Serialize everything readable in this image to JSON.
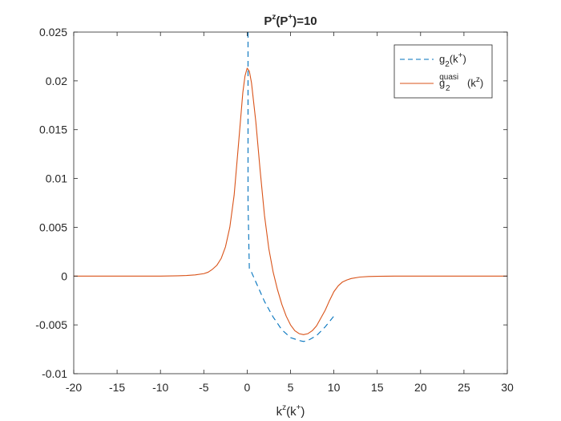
{
  "chart_data": {
    "type": "line",
    "title": {
      "base": "P",
      "base_sup": "z",
      "paren_base": "P",
      "paren_sup": "+",
      "rest": "=10"
    },
    "xlabel": {
      "base": "k",
      "base_sup": "z",
      "paren_base": "k",
      "paren_sup": "+"
    },
    "ylabel": "",
    "xlim": [
      -20,
      30
    ],
    "ylim": [
      -0.01,
      0.025
    ],
    "x_ticks": [
      -20,
      -15,
      -10,
      -5,
      0,
      5,
      10,
      15,
      20,
      25,
      30
    ],
    "x_tick_labels": [
      "-20",
      "-15",
      "-10",
      "-5",
      "0",
      "5",
      "10",
      "15",
      "20",
      "25",
      "30"
    ],
    "y_ticks": [
      -0.01,
      -0.005,
      0,
      0.005,
      0.01,
      0.015,
      0.02,
      0.025
    ],
    "y_tick_labels": [
      "-0.01",
      "-0.005",
      "0",
      "0.005",
      "0.01",
      "0.015",
      "0.02",
      "0.025"
    ],
    "grid": false,
    "legend_position": "top-right",
    "series": [
      {
        "name": "g2(k+)",
        "legend": {
          "base": "g",
          "sub": "2",
          "sup": "",
          "paren_base": "k",
          "paren_sup": "+"
        },
        "color": "#0072BD",
        "style": "dashed",
        "x": [
          0.1,
          0.1,
          0.25,
          0.5,
          1,
          2,
          3,
          4,
          5,
          6,
          6.5,
          7,
          8,
          9,
          10
        ],
        "y": [
          0.025,
          0.0075,
          0.0008,
          0.0004,
          -0.0006,
          -0.0026,
          -0.0042,
          -0.0055,
          -0.0063,
          -0.0066,
          -0.0067,
          -0.0066,
          -0.0061,
          -0.0052,
          -0.0041
        ]
      },
      {
        "name": "g2quasi(kz)",
        "legend": {
          "base": "g",
          "sub": "2",
          "sup": "quasi",
          "paren_base": "k",
          "paren_sup": "z"
        },
        "color": "#D95319",
        "style": "solid",
        "x": [
          -20,
          -15,
          -10,
          -8,
          -7,
          -6,
          -5,
          -4.5,
          -4,
          -3.5,
          -3,
          -2.5,
          -2,
          -1.5,
          -1,
          -0.5,
          -0.25,
          0,
          0.25,
          0.5,
          1,
          1.5,
          2,
          2.5,
          3,
          3.5,
          4,
          4.5,
          5,
          5.5,
          6,
          6.5,
          7,
          7.5,
          8,
          8.5,
          9,
          9.5,
          10,
          10.5,
          11,
          11.5,
          12,
          13,
          14,
          15,
          17,
          20,
          25,
          30
        ],
        "y": [
          0,
          0,
          0,
          3e-05,
          6e-05,
          0.00012,
          0.00025,
          0.0004,
          0.0007,
          0.0011,
          0.0018,
          0.003,
          0.005,
          0.0083,
          0.0135,
          0.0188,
          0.0205,
          0.0213,
          0.021,
          0.0198,
          0.0158,
          0.0108,
          0.0062,
          0.0028,
          0.0004,
          -0.0014,
          -0.0029,
          -0.0041,
          -0.005,
          -0.0056,
          -0.0059,
          -0.006,
          -0.0059,
          -0.0056,
          -0.0051,
          -0.0043,
          -0.0035,
          -0.0025,
          -0.0016,
          -0.001,
          -0.0006,
          -0.0004,
          -0.00025,
          -0.0001,
          -4e-05,
          -2e-05,
          0,
          0,
          0,
          0
        ]
      }
    ]
  }
}
